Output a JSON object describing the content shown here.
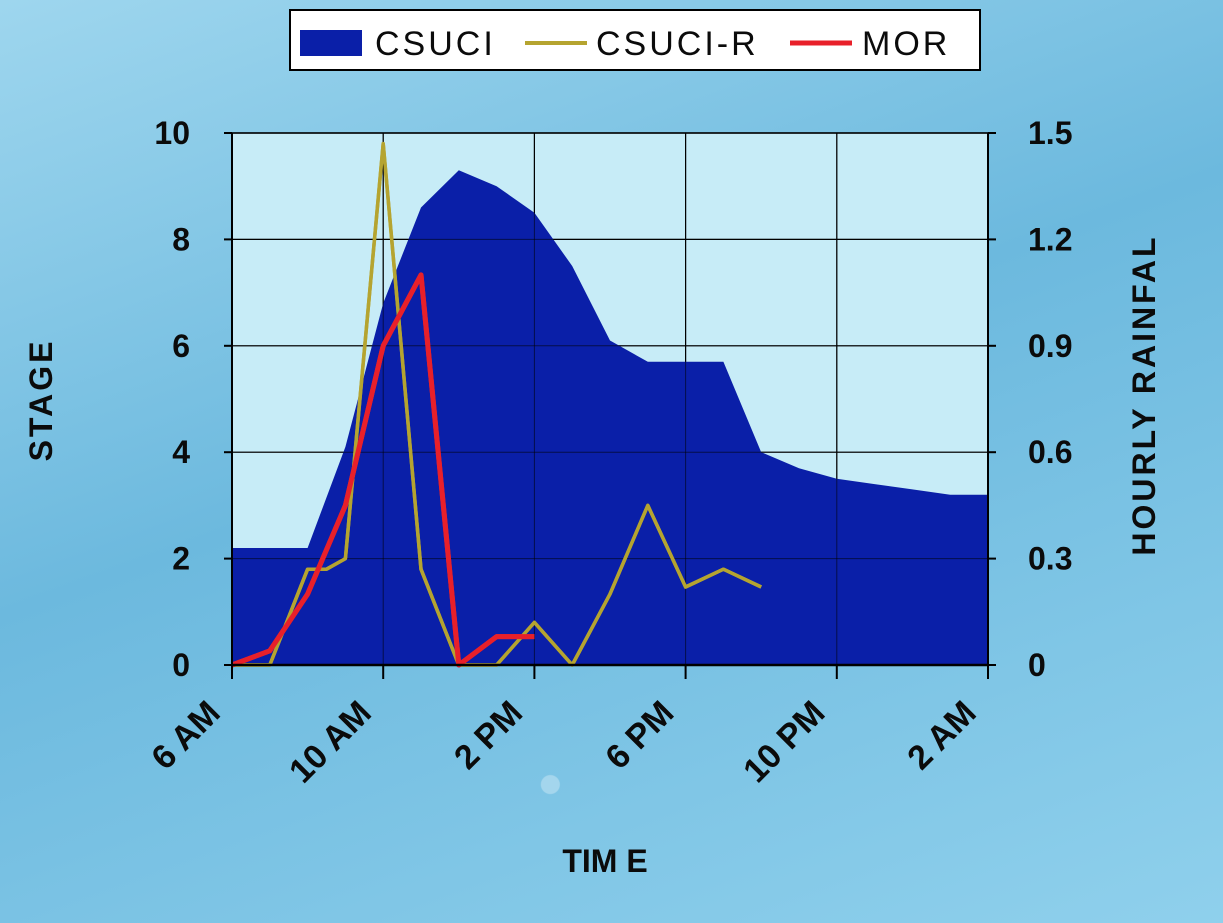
{
  "chart_data": {
    "type": "area+line",
    "xlabel": "TIM E",
    "ylabel_left": "STAGE",
    "ylabel_right": "HOURLY RAINFAL",
    "x_tick_labels": [
      "6 AM",
      "10 AM",
      "2 PM",
      "6 PM",
      "10 PM",
      "2 AM"
    ],
    "x_hours": [
      0,
      4,
      8,
      12,
      16,
      20
    ],
    "x_range_hours": [
      0,
      20
    ],
    "y_left_ticks": [
      "0",
      "2",
      "4",
      "6",
      "8",
      "10"
    ],
    "y_left_range": [
      0,
      10
    ],
    "y_right_ticks": [
      "0",
      "0.3",
      "0.6",
      "0.9",
      "1.2",
      "1.5"
    ],
    "y_right_range": [
      0,
      1.5
    ],
    "grid": true,
    "legend_position": "top",
    "series": [
      {
        "name": "CSUCI",
        "kind": "area",
        "axis": "left",
        "color": "#0a1fa8",
        "x": [
          0,
          2,
          3,
          4,
          5,
          6,
          7,
          8,
          9,
          10,
          11,
          12,
          13,
          14,
          15,
          16,
          17,
          18,
          19,
          20
        ],
        "y": [
          2.2,
          2.2,
          4.1,
          6.8,
          8.6,
          9.3,
          9.0,
          8.5,
          7.5,
          6.1,
          5.7,
          5.7,
          5.7,
          4.0,
          3.7,
          3.5,
          3.4,
          3.3,
          3.2,
          3.2
        ]
      },
      {
        "name": "CSUCI-R",
        "kind": "line",
        "axis": "right",
        "color": "#b5a430",
        "x": [
          0,
          1,
          2,
          2.5,
          3,
          4,
          5,
          6,
          7,
          8,
          9,
          10,
          11,
          12,
          13,
          14
        ],
        "y": [
          0,
          0,
          0.27,
          0.27,
          0.3,
          1.47,
          0.27,
          0,
          0,
          0.12,
          0,
          0.2,
          0.45,
          0.22,
          0.27,
          0.22
        ]
      },
      {
        "name": "MOR",
        "kind": "line",
        "axis": "right",
        "color": "#e8202a",
        "x": [
          0,
          1,
          2,
          3,
          4,
          5,
          6,
          7,
          8
        ],
        "y": [
          0,
          0.04,
          0.2,
          0.45,
          0.9,
          1.1,
          0,
          0.08,
          0.08
        ]
      }
    ]
  }
}
